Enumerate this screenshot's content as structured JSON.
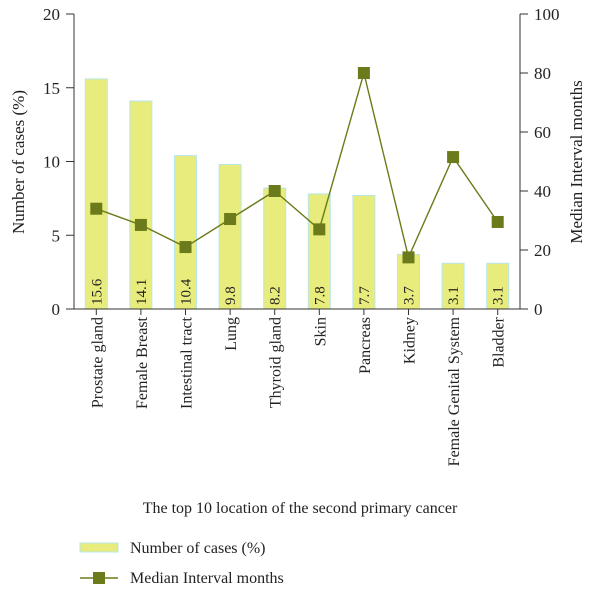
{
  "chart_data": {
    "type": "bar",
    "categories": [
      "Prostate gland",
      "Female Breast",
      "Intestinal tract",
      "Lung",
      "Thyroid gland",
      "Skin",
      "Pancreas",
      "Kidney",
      "Female Genital System",
      "Bladder"
    ],
    "series": [
      {
        "name": "Number of cases (%)",
        "type": "bar",
        "axis": "left",
        "values": [
          15.6,
          14.1,
          10.4,
          9.8,
          8.2,
          7.8,
          7.7,
          3.7,
          3.1,
          3.1
        ],
        "data_labels": [
          "15.6",
          "14.1",
          "10.4",
          "9.8",
          "8.2",
          "7.8",
          "7.7",
          "3.7",
          "3.1",
          "3.1"
        ],
        "color": "#e8ec7c"
      },
      {
        "name": "Median Interval months",
        "type": "line",
        "axis": "right",
        "values": [
          34,
          28.5,
          21,
          30.5,
          40,
          27,
          80,
          17.5,
          51.5,
          29.5
        ],
        "color": "#6b7a1a"
      }
    ],
    "xlabel": "The top 10 location of the second primary cancer",
    "ylabel": "Number of cases (%)",
    "y2label": "Median Interval months",
    "ylim": [
      0,
      20
    ],
    "y2lim": [
      0,
      100
    ],
    "yticks": [
      0,
      5,
      10,
      15,
      20
    ],
    "y2ticks": [
      0,
      20,
      40,
      60,
      80,
      100
    ],
    "grid": false,
    "legend_position": "bottom-left"
  }
}
